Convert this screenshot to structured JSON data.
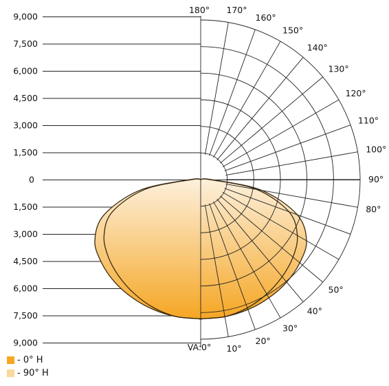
{
  "chart_data": {
    "type": "polar",
    "y_tick_labels": [
      "9,000",
      "7,500",
      "6,000",
      "4,500",
      "3,000",
      "1,500",
      "0",
      "1,500",
      "3,000",
      "4,500",
      "6,000",
      "7,500",
      "9,000"
    ],
    "radial_values": [
      1500,
      3000,
      4500,
      6000,
      7500,
      9000
    ],
    "angles": [
      0,
      10,
      20,
      30,
      40,
      50,
      60,
      70,
      80,
      90,
      100,
      110,
      120,
      130,
      140,
      150,
      160,
      170,
      180
    ],
    "angle_labels": [
      "VA:0°",
      "10°",
      "20°",
      "30°",
      "40°",
      "50°",
      "",
      "",
      "80°",
      "90°",
      "100°",
      "110°",
      "120°",
      "130°",
      "140°",
      "150°",
      "160°",
      "170°",
      "180°"
    ],
    "series": [
      {
        "name": "- 0° H",
        "color": "#f5a623",
        "points": [
          [
            0,
            7850
          ],
          [
            10,
            7850
          ],
          [
            20,
            7800
          ],
          [
            30,
            7700
          ],
          [
            40,
            7550
          ],
          [
            50,
            7300
          ],
          [
            60,
            6900
          ],
          [
            70,
            5800
          ],
          [
            80,
            3500
          ],
          [
            90,
            600
          ],
          [
            100,
            0
          ]
        ]
      },
      {
        "name": "- 90° H",
        "color": "#fbd99a",
        "points": [
          [
            0,
            7850
          ],
          [
            10,
            7850
          ],
          [
            20,
            7700
          ],
          [
            30,
            7450
          ],
          [
            40,
            7150
          ],
          [
            50,
            6800
          ],
          [
            60,
            6300
          ],
          [
            70,
            5300
          ],
          [
            80,
            3200
          ],
          [
            90,
            500
          ],
          [
            100,
            0
          ]
        ]
      }
    ]
  },
  "legend": {
    "items": [
      {
        "label": "- 0° H",
        "color": "#f5a623"
      },
      {
        "label": "- 90° H",
        "color": "#fbd99a"
      }
    ]
  }
}
